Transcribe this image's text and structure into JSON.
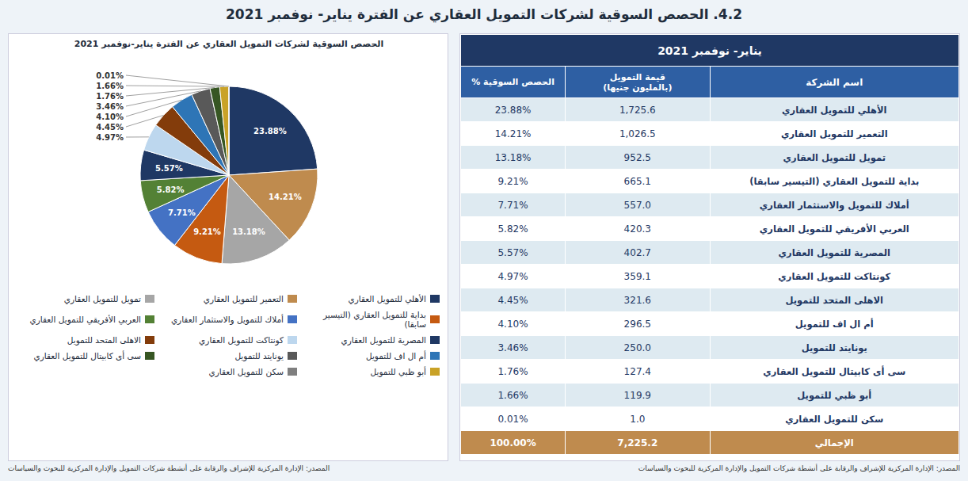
{
  "chart_data": [
    {
      "type": "pie",
      "title": "4.2. الحصص السوقية لشركات التمويل العقاري عن الفترة يناير- نوفمبر  2021",
      "subtitle": "الحصص السوقية لشركات التمويل العقاري عن الفترة يناير-نوفمبر 2021",
      "categories": [
        "الأهلي للتمويل العقاري",
        "التعمير للتمويل العقاري",
        "تمويل للتمويل العقاري",
        "بداية للتمويل العقاري (التيسير سابقا)",
        "أملاك للتمويل والاستثمار العقاري",
        "العربي الأفريقي للتمويل العقاري",
        "المصرية للتمويل العقاري",
        "كونتاكت للتمويل العقاري",
        "الاهلى المتحد للتمويل",
        "أم ال اف للتمويل",
        "يونايتد للتمويل",
        "سى أى كابيتال للتمويل العقاري",
        "أبو ظبي للتمويل",
        "سكن للتمويل العقاري"
      ],
      "values": [
        23.88,
        14.21,
        13.18,
        9.21,
        7.71,
        5.82,
        5.57,
        4.97,
        4.45,
        4.1,
        3.46,
        1.76,
        1.66,
        0.01
      ],
      "value_labels": [
        "23.88%",
        "14.21%",
        "13.18%",
        "9.21%",
        "7.71%",
        "5.82%",
        "5.57%",
        "4.97%",
        "4.45%",
        "4.10%",
        "3.46%",
        "1.76%",
        "1.66%",
        "0.01%"
      ],
      "colors": [
        "#1F3864",
        "#BF8B4E",
        "#A6A6A6",
        "#C55A11",
        "#4472C4",
        "#538135",
        "#1F3864",
        "#BDD7EE",
        "#833C0B",
        "#2E75B6",
        "#595959",
        "#375623",
        "#C9A227",
        "#7F7F7F"
      ],
      "data_labels": true,
      "legend": "bottom",
      "annotations": [
        "المصدر: الإدارة المركزية للإشراف والرقابة على أنشطة شركات التمويل والإدارة المركزية للبحوث والسياسات"
      ]
    },
    {
      "type": "table",
      "title": "يناير- نوفمبر  2021",
      "xlabel": "اسم الشركة",
      "categories": [
        "الأهلي للتمويل العقاري",
        "التعمير للتمويل العقاري",
        "تمويل للتمويل العقاري",
        "بداية للتمويل العقاري (التيسير سابقا)",
        "أملاك للتمويل والاستثمار العقاري",
        "العربي الأفريقي للتمويل العقاري",
        "المصرية للتمويل العقاري",
        "كونتاكت للتمويل العقاري",
        "الاهلى المتحد للتمويل",
        "أم ال اف للتمويل",
        "يونايتد للتمويل",
        "سى أى كابيتال للتمويل العقاري",
        "أبو ظبي للتمويل",
        "سكن للتمويل العقاري",
        "الإجمالي"
      ],
      "series": [
        {
          "name": "قيمة التمويل\n(بالمليون جنيها)",
          "values": [
            1725.6,
            1026.5,
            952.5,
            665.1,
            557,
            420.3,
            402.7,
            359.1,
            321.6,
            296.5,
            250,
            127.4,
            119.9,
            1,
            7225.2
          ],
          "value_labels": [
            "1,725.6",
            "1,026.5",
            "952.5",
            "665.1",
            "557.0",
            "420.3",
            "402.7",
            "359.1",
            "321.6",
            "296.5",
            "250.0",
            "127.4",
            "119.9",
            "1.0",
            "7,225.2"
          ]
        },
        {
          "name": "الحصص السوقية %",
          "values": [
            23.88,
            14.21,
            13.18,
            9.21,
            7.71,
            5.82,
            5.57,
            4.97,
            4.45,
            4.1,
            3.46,
            1.76,
            1.66,
            0.01,
            100
          ],
          "value_labels": [
            "23.88%",
            "14.21%",
            "13.18%",
            "9.21%",
            "7.71%",
            "5.82%",
            "5.57%",
            "4.97%",
            "4.45%",
            "4.10%",
            "3.46%",
            "1.76%",
            "1.66%",
            "0.01%",
            "100.00%"
          ]
        }
      ],
      "annotations": [
        "المصدر: الإدارة المركزية للإشراف والرقابة على أنشطة شركات التمويل والإدارة المركزية للبحوث والسياسات"
      ]
    }
  ]
}
